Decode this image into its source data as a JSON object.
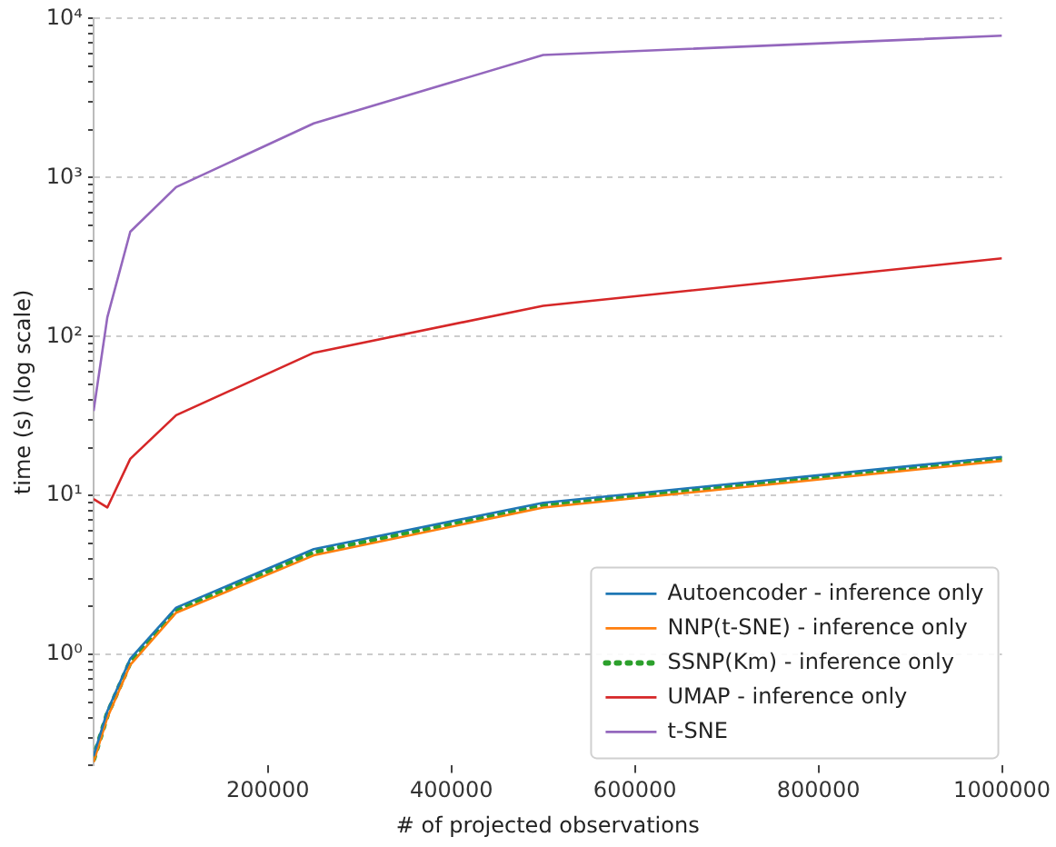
{
  "chart_data": {
    "type": "line",
    "xlabel": "# of projected observations",
    "ylabel": "time (s) (log scale)",
    "x": [
      10000,
      25000,
      50000,
      100000,
      250000,
      500000,
      1000000
    ],
    "series": [
      {
        "name": "Autoencoder - inference only",
        "color": "#1f77b4",
        "values": [
          0.23,
          0.44,
          0.94,
          1.97,
          4.6,
          9.0,
          17.5
        ]
      },
      {
        "name": "NNP(t-SNE) - inference only",
        "color": "#ff7f0e",
        "values": [
          0.21,
          0.4,
          0.86,
          1.83,
          4.2,
          8.4,
          16.5
        ]
      },
      {
        "name": "SSNP(Km) - inference only",
        "color": "#2ca02c",
        "line_style": "dotted",
        "values": [
          0.22,
          0.42,
          0.9,
          1.9,
          4.4,
          8.7,
          17
        ]
      },
      {
        "name": "UMAP - inference only",
        "color": "#d62728",
        "values": [
          9.5,
          8.4,
          17,
          32,
          79,
          156,
          310
        ]
      },
      {
        "name": "t-SNE",
        "color": "#9467bd",
        "values": [
          34,
          132,
          456,
          870,
          2190,
          5900,
          7800
        ]
      }
    ],
    "log": "y",
    "xlim": [
      10000,
      1000000
    ],
    "xticks": [
      200000,
      400000,
      600000,
      800000,
      1000000
    ],
    "ylim": [
      0.2,
      10000
    ],
    "yticks": [
      {
        "value": 0.2,
        "label": null
      },
      {
        "value": 0.3,
        "label": null
      },
      {
        "value": 0.4,
        "label": null
      },
      {
        "value": 0.5,
        "label": null
      },
      {
        "value": 0.6,
        "label": null
      },
      {
        "value": 0.7,
        "label": null
      },
      {
        "value": 0.8,
        "label": null
      },
      {
        "value": 0.9,
        "label": null
      },
      {
        "value": 1,
        "label": "10⁰"
      },
      {
        "value": 2,
        "label": null
      },
      {
        "value": 3,
        "label": null
      },
      {
        "value": 4,
        "label": null
      },
      {
        "value": 5,
        "label": null
      },
      {
        "value": 6,
        "label": null
      },
      {
        "value": 7,
        "label": null
      },
      {
        "value": 8,
        "label": null
      },
      {
        "value": 9,
        "label": null
      },
      {
        "value": 10,
        "label": "10¹"
      },
      {
        "value": 20,
        "label": null
      },
      {
        "value": 30,
        "label": null
      },
      {
        "value": 40,
        "label": null
      },
      {
        "value": 50,
        "label": null
      },
      {
        "value": 60,
        "label": null
      },
      {
        "value": 70,
        "label": null
      },
      {
        "value": 80,
        "label": null
      },
      {
        "value": 90,
        "label": null
      },
      {
        "value": 100,
        "label": "10²"
      },
      {
        "value": 200,
        "label": null
      },
      {
        "value": 300,
        "label": null
      },
      {
        "value": 400,
        "label": null
      },
      {
        "value": 500,
        "label": null
      },
      {
        "value": 600,
        "label": null
      },
      {
        "value": 700,
        "label": null
      },
      {
        "value": 800,
        "label": null
      },
      {
        "value": 900,
        "label": null
      },
      {
        "value": 1000,
        "label": "10³"
      },
      {
        "value": 2000,
        "label": null
      },
      {
        "value": 3000,
        "label": null
      },
      {
        "value": 4000,
        "label": null
      },
      {
        "value": 5000,
        "label": null
      },
      {
        "value": 6000,
        "label": null
      },
      {
        "value": 7000,
        "label": null
      },
      {
        "value": 8000,
        "label": null
      },
      {
        "value": 9000,
        "label": null
      },
      {
        "value": 10000,
        "label": "10⁴"
      }
    ],
    "grid": "y",
    "legend": "bottom right"
  }
}
